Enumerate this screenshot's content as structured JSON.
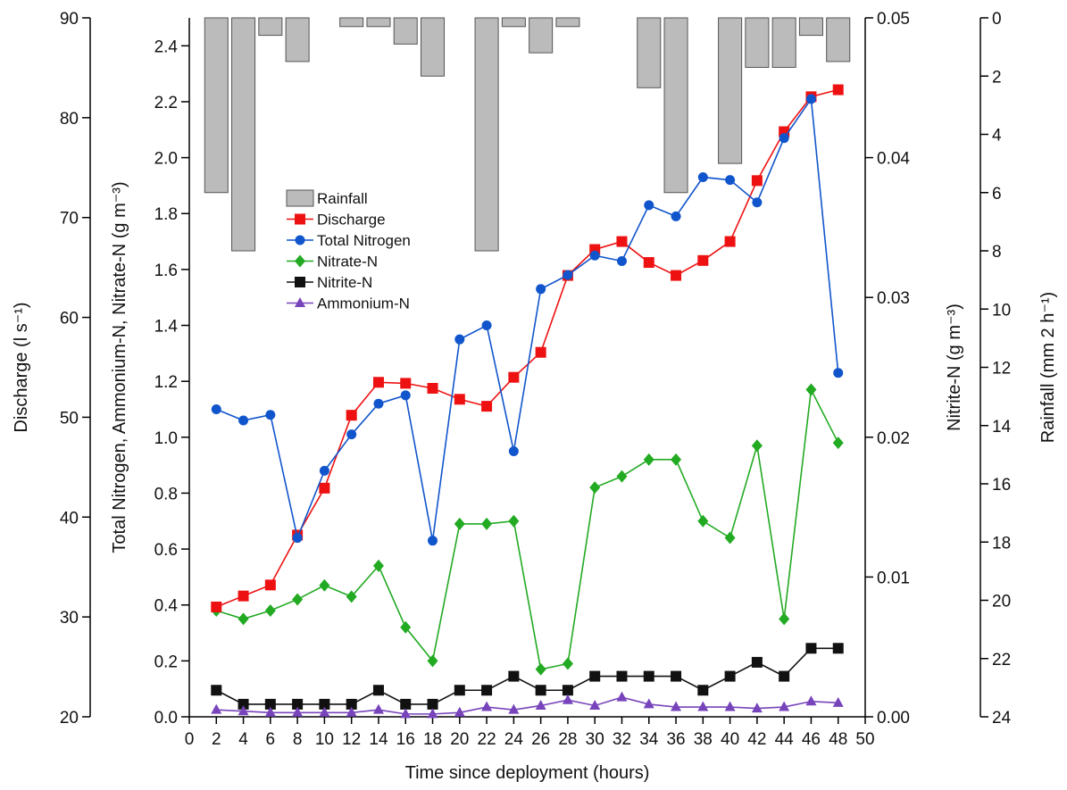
{
  "chart_data": {
    "type": "line",
    "title": "",
    "xlabel": "Time since deployment (hours)",
    "x_ticks": [
      "0",
      "2",
      "4",
      "6",
      "8",
      "10",
      "12",
      "14",
      "16",
      "18",
      "20",
      "22",
      "24",
      "26",
      "28",
      "30",
      "32",
      "34",
      "36",
      "38",
      "40",
      "42",
      "44",
      "46",
      "48",
      "50"
    ],
    "xlim": [
      0,
      50
    ],
    "axes": {
      "discharge": {
        "label": "Discharge (l s⁻¹)",
        "ylim": [
          20,
          90
        ],
        "ticks": [
          "20",
          "30",
          "40",
          "50",
          "60",
          "70",
          "80",
          "90"
        ]
      },
      "nitrogen": {
        "label": "Total Nitrogen, Ammonium-N, Nitrate-N (g m⁻³)",
        "ylim": [
          0,
          2.5
        ],
        "ticks": [
          "0.0",
          "0.2",
          "0.4",
          "0.6",
          "0.8",
          "1.0",
          "1.2",
          "1.4",
          "1.6",
          "1.8",
          "2.0",
          "2.2",
          "2.4"
        ]
      },
      "nitrite": {
        "label": "Nitrite-N (g m⁻³)",
        "ylim": [
          0,
          0.05
        ],
        "ticks": [
          "0.00",
          "0.01",
          "0.02",
          "0.03",
          "0.04",
          "0.05"
        ]
      },
      "rainfall": {
        "label": "Rainfall (mm 2 h⁻¹)",
        "ylim": [
          0,
          24
        ],
        "inverted": true,
        "ticks": [
          "0",
          "2",
          "4",
          "6",
          "8",
          "10",
          "12",
          "14",
          "16",
          "18",
          "20",
          "22",
          "24"
        ]
      }
    },
    "x": [
      2,
      4,
      6,
      8,
      10,
      12,
      14,
      16,
      18,
      20,
      22,
      24,
      26,
      28,
      30,
      32,
      34,
      36,
      38,
      40,
      42,
      44,
      46,
      48
    ],
    "legend": {
      "placement": "upper-left-inside"
    },
    "series": [
      {
        "name": "Rainfall",
        "type": "bar",
        "axis": "rainfall",
        "color": "#bbbbbb",
        "values": [
          6,
          8,
          0.6,
          1.5,
          0,
          0.3,
          0.3,
          0.9,
          2.0,
          0,
          8,
          0.3,
          1.2,
          0.3,
          0,
          0,
          2.4,
          6,
          0,
          5,
          1.7,
          1.7,
          0.6,
          1.5
        ]
      },
      {
        "name": "Discharge",
        "type": "line",
        "axis": "discharge",
        "color": "#ee1111",
        "marker": "square",
        "values": [
          31.0,
          32.1,
          33.2,
          38.2,
          42.9,
          50.2,
          53.5,
          53.4,
          52.9,
          51.8,
          51.1,
          54.0,
          56.5,
          64.2,
          66.8,
          67.6,
          65.5,
          64.2,
          65.7,
          67.6,
          73.7,
          78.6,
          82.1,
          82.8
        ]
      },
      {
        "name": "Total Nitrogen",
        "type": "line",
        "axis": "nitrogen",
        "color": "#1155cc",
        "marker": "circle",
        "values": [
          1.1,
          1.06,
          1.08,
          0.64,
          0.88,
          1.01,
          1.12,
          1.15,
          0.63,
          1.35,
          1.4,
          0.95,
          1.53,
          1.58,
          1.65,
          1.63,
          1.83,
          1.79,
          1.93,
          1.92,
          1.84,
          2.07,
          2.21,
          1.23
        ]
      },
      {
        "name": "Nitrate-N",
        "type": "line",
        "axis": "nitrogen",
        "color": "#22aa22",
        "marker": "diamond",
        "values": [
          0.38,
          0.35,
          0.38,
          0.42,
          0.47,
          0.43,
          0.54,
          0.32,
          0.2,
          0.69,
          0.69,
          0.7,
          0.17,
          0.19,
          0.82,
          0.86,
          0.92,
          0.92,
          0.7,
          0.64,
          0.97,
          0.35,
          1.17,
          0.98
        ]
      },
      {
        "name": "Nitrite-N",
        "type": "line",
        "axis": "nitrite",
        "color": "#111111",
        "marker": "square",
        "values": [
          0.0019,
          0.0009,
          0.0009,
          0.0009,
          0.0009,
          0.0009,
          0.0019,
          0.0009,
          0.0009,
          0.0019,
          0.0019,
          0.0029,
          0.0019,
          0.0019,
          0.0029,
          0.0029,
          0.0029,
          0.0029,
          0.0019,
          0.0029,
          0.0039,
          0.0029,
          0.0049,
          0.0049
        ]
      },
      {
        "name": "Ammonium-N",
        "type": "line",
        "axis": "nitrogen",
        "color": "#7744bb",
        "marker": "triangle",
        "values": [
          0.025,
          0.02,
          0.015,
          0.015,
          0.015,
          0.015,
          0.025,
          0.01,
          0.01,
          0.015,
          0.035,
          0.025,
          0.04,
          0.06,
          0.04,
          0.07,
          0.045,
          0.035,
          0.035,
          0.035,
          0.03,
          0.035,
          0.055,
          0.05
        ]
      }
    ]
  }
}
